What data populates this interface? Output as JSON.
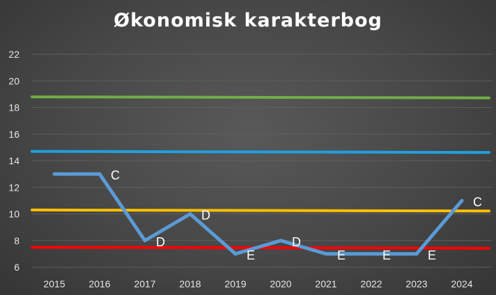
{
  "chart_data": {
    "type": "line",
    "title": "Økonomisk karakterbog",
    "xlabel": "",
    "ylabel": "",
    "categories": [
      "2015",
      "2016",
      "2017",
      "2018",
      "2019",
      "2020",
      "2021",
      "2022",
      "2023",
      "2024"
    ],
    "ylim": [
      6,
      22
    ],
    "yticks": [
      6,
      8,
      10,
      12,
      14,
      16,
      18,
      20,
      22
    ],
    "grid": true,
    "legend": "none",
    "series": [
      {
        "values": [
          13,
          13,
          8,
          10,
          7,
          8,
          7,
          7,
          7,
          11
        ],
        "labels": [
          "",
          "C",
          "D",
          "D",
          "E",
          "D",
          "E",
          "E",
          "E",
          "C"
        ],
        "color": "#5b9bd5"
      }
    ],
    "reference_lines": [
      {
        "value": 18.8,
        "color": "#70ad47"
      },
      {
        "value": 14.7,
        "color": "#1fa0e0"
      },
      {
        "value": 10.3,
        "color": "#ffc000"
      },
      {
        "value": 7.5,
        "color": "#ff0000"
      }
    ]
  }
}
